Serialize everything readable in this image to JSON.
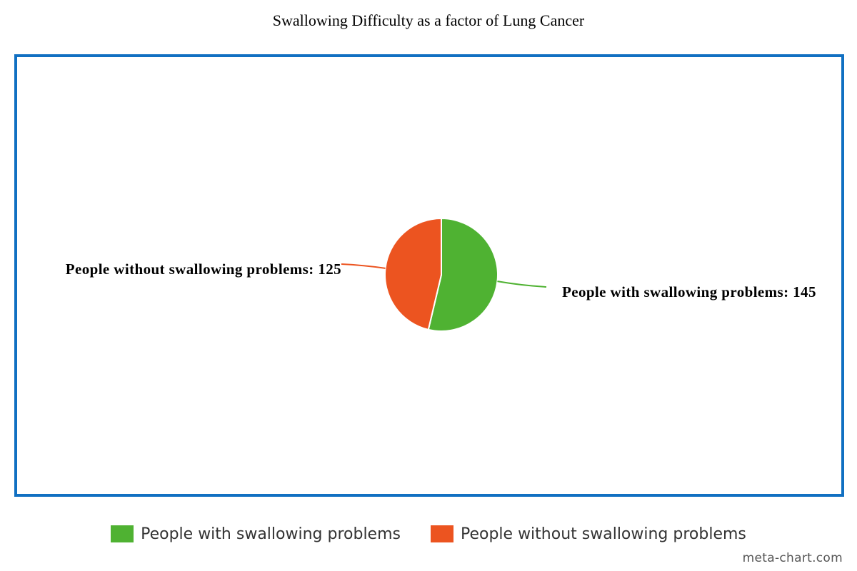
{
  "chart_data": {
    "type": "pie",
    "title": "Swallowing Difficulty as a factor of Lung Cancer",
    "slices": [
      {
        "label": "People with swallowing problems",
        "value": 145,
        "color": "#4fb232",
        "data_label": "People with swallowing problems: 145"
      },
      {
        "label": "People without swallowing problems",
        "value": 125,
        "color": "#ec5420",
        "data_label": "People without swallowing problems: 125"
      }
    ],
    "start_angle_deg": 0,
    "direction": "clockwise",
    "legend_position": "bottom",
    "frame_color": "#1170c2"
  },
  "credit": "meta-chart.com"
}
